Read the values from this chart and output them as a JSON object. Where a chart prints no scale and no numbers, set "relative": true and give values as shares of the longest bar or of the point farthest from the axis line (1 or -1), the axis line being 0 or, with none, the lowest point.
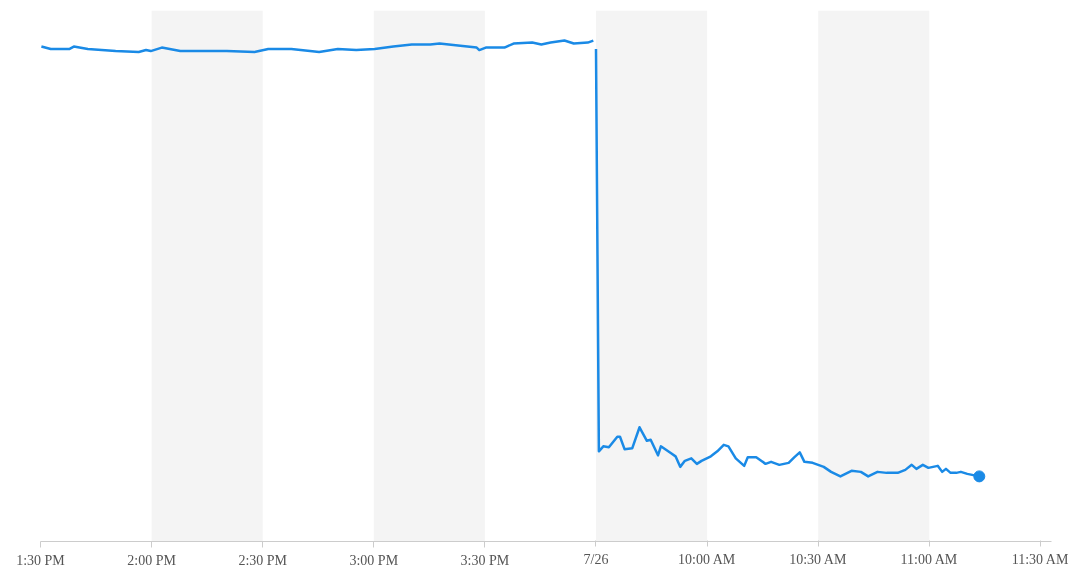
{
  "chart_data": {
    "type": "line",
    "relative": true,
    "marker": "none",
    "line_style": "solid",
    "grid": false,
    "xlim": [
      13.5,
      18.05
    ],
    "xticks": [
      {
        "value": 13.5,
        "label": "1:30 PM"
      },
      {
        "value": 14,
        "label": "2:00 PM"
      },
      {
        "value": 14.5,
        "label": "2:30 PM"
      },
      {
        "value": 15,
        "label": "3:00 PM"
      },
      {
        "value": 15.5,
        "label": "3:30 PM"
      }
    ],
    "x2lim": [
      7.0,
      11.55
    ],
    "x2ticks": [
      {
        "value": 9.5,
        "label": "7/26"
      },
      {
        "value": 10,
        "label": "10:00 AM"
      },
      {
        "value": 10.5,
        "label": "10:30 AM"
      },
      {
        "value": 11,
        "label": "11:00 AM"
      },
      {
        "value": 11.5,
        "label": "11:30 AM"
      }
    ],
    "bands": [
      {
        "axis": "x",
        "from": 14,
        "to": 14.5,
        "color": "#f4f4f4"
      },
      {
        "axis": "x",
        "from": 15,
        "to": 15.5,
        "color": "#f4f4f4"
      },
      {
        "axis": "x2",
        "from": 9.5,
        "to": 10,
        "color": "#f4f4f4"
      },
      {
        "axis": "x2",
        "from": 10.5,
        "to": 11,
        "color": "#f4f4f4"
      }
    ],
    "series": [
      {
        "color": "#1a8ae6",
        "x": [
          13.504,
          13.546,
          13.629,
          13.65,
          13.713,
          13.838,
          13.942,
          13.975,
          13.996,
          14.046,
          14.129,
          14.213,
          14.338,
          14.463,
          14.525,
          14.629,
          14.713,
          14.754,
          14.838,
          14.921,
          15.004,
          15.088,
          15.171,
          15.254,
          15.296,
          15.379,
          15.463,
          15.475,
          15.504,
          15.588,
          15.629,
          15.713,
          15.754,
          15.796,
          15.858,
          15.9,
          15.963,
          15.988
        ],
        "values": [
          0.988,
          0.983,
          0.983,
          0.988,
          0.983,
          0.979,
          0.977,
          0.981,
          0.979,
          0.986,
          0.979,
          0.979,
          0.979,
          0.977,
          0.983,
          0.983,
          0.979,
          0.977,
          0.983,
          0.981,
          0.983,
          0.988,
          0.992,
          0.992,
          0.994,
          0.99,
          0.986,
          0.981,
          0.986,
          0.986,
          0.994,
          0.996,
          0.992,
          0.996,
          1.0,
          0.994,
          0.996,
          1.0
        ]
      },
      {
        "color": "#1a8ae6",
        "axis": "x2",
        "x": [
          9.5,
          9.513,
          9.533,
          9.558,
          9.596,
          9.608,
          9.629,
          9.663,
          9.696,
          9.729,
          9.746,
          9.779,
          9.792,
          9.838,
          9.858,
          9.879,
          9.9,
          9.929,
          9.954,
          9.975,
          10.017,
          10.046,
          10.075,
          10.096,
          10.129,
          10.167,
          10.183,
          10.221,
          10.263,
          10.288,
          10.325,
          10.367,
          10.392,
          10.417,
          10.438,
          10.475,
          10.525,
          10.558,
          10.6,
          10.65,
          10.692,
          10.725,
          10.767,
          10.808,
          10.858,
          10.892,
          10.921,
          10.942,
          10.971,
          10.996,
          11.038,
          11.058,
          11.075,
          11.096,
          11.121,
          11.142,
          11.171,
          11.225
        ],
        "values": [
          0.983,
          0.18,
          0.19,
          0.188,
          0.209,
          0.209,
          0.184,
          0.186,
          0.228,
          0.201,
          0.203,
          0.172,
          0.19,
          0.176,
          0.17,
          0.149,
          0.161,
          0.166,
          0.155,
          0.161,
          0.17,
          0.18,
          0.193,
          0.19,
          0.166,
          0.151,
          0.168,
          0.168,
          0.155,
          0.159,
          0.153,
          0.157,
          0.168,
          0.178,
          0.159,
          0.157,
          0.149,
          0.139,
          0.13,
          0.141,
          0.139,
          0.13,
          0.139,
          0.137,
          0.137,
          0.143,
          0.153,
          0.145,
          0.153,
          0.147,
          0.151,
          0.139,
          0.145,
          0.137,
          0.137,
          0.139,
          0.135,
          0.13
        ]
      },
      {
        "type": "scatter",
        "marker": "circle",
        "color": "#1a8ae6",
        "axis": "x2",
        "x": [
          11.225
        ],
        "values": [
          0.13
        ]
      }
    ]
  }
}
